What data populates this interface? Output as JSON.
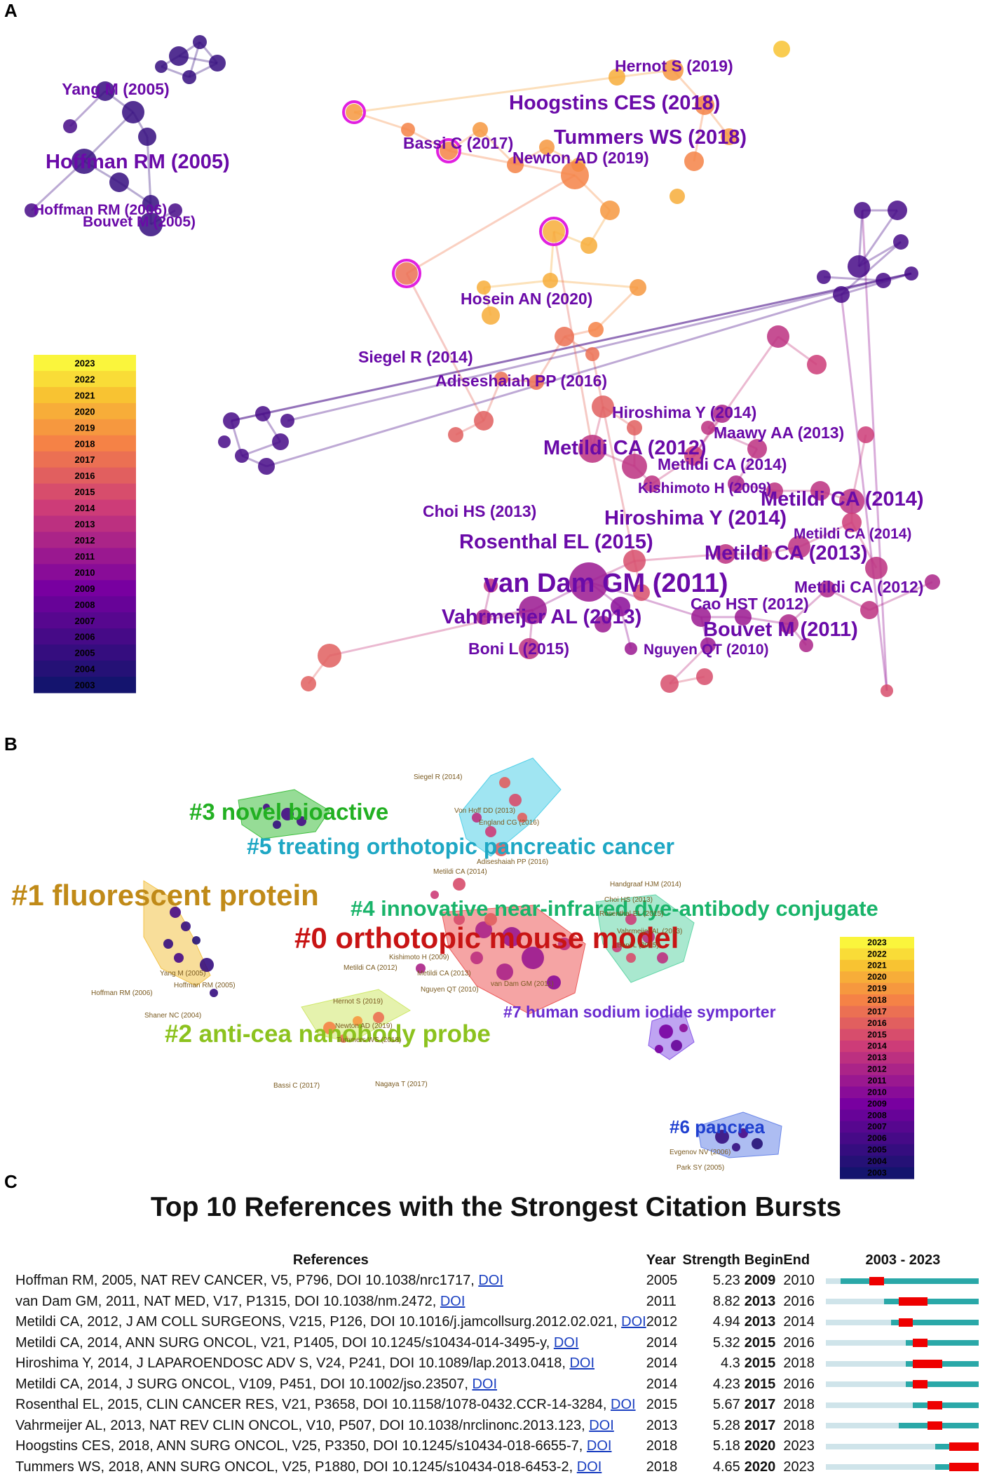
{
  "panel_a": {
    "letter": "A",
    "labels": [
      {
        "text": "Yang M (2005)",
        "size": "m"
      },
      {
        "text": "Hoffman RM (2005)",
        "size": "l"
      },
      {
        "text": "Hoffman RM (2006)",
        "size": "s"
      },
      {
        "text": "Bouvet M (2005)",
        "size": "s"
      },
      {
        "text": "Hernot S (2019)",
        "size": "m"
      },
      {
        "text": "Hoogstins CES (2018)",
        "size": "l"
      },
      {
        "text": "Tummers WS (2018)",
        "size": "l"
      },
      {
        "text": "Bassi C (2017)",
        "size": "m"
      },
      {
        "text": "Newton AD (2019)",
        "size": "m"
      },
      {
        "text": "Hosein AN (2020)",
        "size": "m"
      },
      {
        "text": "Siegel R (2014)",
        "size": "m"
      },
      {
        "text": "Adiseshaiah PP (2016)",
        "size": "m"
      },
      {
        "text": "Hiroshima Y (2014)",
        "size": "m"
      },
      {
        "text": "Maawy AA (2013)",
        "size": "m"
      },
      {
        "text": "Metildi CA (2012)",
        "size": "l"
      },
      {
        "text": "Metildi CA (2014)",
        "size": "m"
      },
      {
        "text": "Kishimoto H (2009)",
        "size": "s"
      },
      {
        "text": "Metildi CA (2014)",
        "size": "l"
      },
      {
        "text": "Choi HS (2013)",
        "size": "m"
      },
      {
        "text": "Hiroshima Y (2014)",
        "size": "l"
      },
      {
        "text": "Metildi CA (2014)",
        "size": "s"
      },
      {
        "text": "Rosenthal EL (2015)",
        "size": "l"
      },
      {
        "text": "Metildi CA (2013)",
        "size": "l"
      },
      {
        "text": "van Dam GM (2011)",
        "size": "xl"
      },
      {
        "text": "Metildi CA (2012)",
        "size": "m"
      },
      {
        "text": "Cao HST (2012)",
        "size": "m"
      },
      {
        "text": "Vahrmeijer AL (2013)",
        "size": "l"
      },
      {
        "text": "Bouvet M (2011)",
        "size": "l"
      },
      {
        "text": "Boni L (2015)",
        "size": "m"
      },
      {
        "text": "Nguyen QT (2010)",
        "size": "s"
      }
    ],
    "legend_years": [
      "2023",
      "2022",
      "2021",
      "2020",
      "2019",
      "2018",
      "2017",
      "2016",
      "2015",
      "2014",
      "2013",
      "2012",
      "2011",
      "2010",
      "2009",
      "2008",
      "2007",
      "2006",
      "2005",
      "2004",
      "2003"
    ]
  },
  "panel_b": {
    "letter": "B",
    "clusters": [
      {
        "text": "#3 novel bioactive",
        "color": "#22b022"
      },
      {
        "text": "#5 treating orthotopic pancreatic cancer",
        "color": "#1ea7c4"
      },
      {
        "text": "#1 fluorescent protein",
        "color": "#c08a18"
      },
      {
        "text": "#4 innovative near-infrared dye-antibody conjugate",
        "color": "#19b46a"
      },
      {
        "text": "#0 orthotopic mouse model",
        "color": "#c81414"
      },
      {
        "text": "#7 human sodium iodide symporter",
        "color": "#6a2cd0"
      },
      {
        "text": "#2 anti-cea nanobody probe",
        "color": "#8cc21e"
      },
      {
        "text": "#6 pancrea",
        "color": "#2040d0"
      }
    ],
    "small_labels": [
      "Siegel R (2014)",
      "Von Hoff DD (2013)",
      "England CG (2016)",
      "Adiseshaiah PP (2016)",
      "Metildi CA (2014)",
      "Handgraaf HJM (2014)",
      "Choi HS (2013)",
      "Rosenthal EL (2015)",
      "Vahrmeijer AL (2013)",
      "Boni L (2015)",
      "Metildi CA (2012)",
      "van Dam GM (2011)",
      "Metildi CA (2013)",
      "Nguyen QT (2010)",
      "Kishimoto H (2009)",
      "Yang M (2005)",
      "Hoffman RM (2005)",
      "Hoffman RM (2006)",
      "Shaner NC (2004)",
      "Hernot S (2019)",
      "Newton AD (2019)",
      "Tummers WS (2018)",
      "Bassi C (2017)",
      "Nagaya T (2017)",
      "Evgenov NV (2006)",
      "Park SY (2005)"
    ],
    "legend_years": [
      "2023",
      "2022",
      "2021",
      "2020",
      "2019",
      "2018",
      "2017",
      "2016",
      "2015",
      "2014",
      "2013",
      "2012",
      "2011",
      "2010",
      "2009",
      "2008",
      "2007",
      "2006",
      "2005",
      "2004",
      "2003"
    ]
  },
  "panel_c": {
    "letter": "C",
    "title": "Top 10 References with the Strongest Citation Bursts",
    "headers": {
      "references": "References",
      "year": "Year",
      "strength": "Strength",
      "begin": "Begin",
      "end": "End",
      "range": "2003 - 2023"
    },
    "range_start": 2003,
    "range_end": 2023,
    "rows": [
      {
        "ref": "Hoffman RM, 2005, NAT REV CANCER, V5, P796, DOI 10.1038/nrc1717,",
        "doi": "DOI",
        "year": 2005,
        "strength": "5.23",
        "begin": 2009,
        "end": 2010
      },
      {
        "ref": "van Dam GM, 2011, NAT MED, V17, P1315, DOI 10.1038/nm.2472,",
        "doi": "DOI",
        "year": 2011,
        "strength": "8.82",
        "begin": 2013,
        "end": 2016
      },
      {
        "ref": "Metildi CA, 2012, J AM COLL SURGEONS, V215, P126, DOI 10.1016/j.jamcollsurg.2012.02.021,",
        "doi": "DOI",
        "year": 2012,
        "strength": "4.94",
        "begin": 2013,
        "end": 2014
      },
      {
        "ref": "Metildi CA, 2014, ANN SURG ONCOL, V21, P1405, DOI 10.1245/s10434-014-3495-y,",
        "doi": "DOI",
        "year": 2014,
        "strength": "5.32",
        "begin": 2015,
        "end": 2016
      },
      {
        "ref": "Hiroshima Y, 2014, J LAPAROENDOSC ADV S, V24, P241, DOI 10.1089/lap.2013.0418,",
        "doi": "DOI",
        "year": 2014,
        "strength": "4.3",
        "begin": 2015,
        "end": 2018
      },
      {
        "ref": "Metildi CA, 2014, J SURG ONCOL, V109, P451, DOI 10.1002/jso.23507,",
        "doi": "DOI",
        "year": 2014,
        "strength": "4.23",
        "begin": 2015,
        "end": 2016
      },
      {
        "ref": "Rosenthal EL, 2015, CLIN CANCER RES, V21, P3658, DOI 10.1158/1078-0432.CCR-14-3284,",
        "doi": "DOI",
        "year": 2015,
        "strength": "5.67",
        "begin": 2017,
        "end": 2018
      },
      {
        "ref": "Vahrmeijer AL, 2013, NAT REV CLIN ONCOL, V10, P507, DOI 10.1038/nrclinonc.2013.123,",
        "doi": "DOI",
        "year": 2013,
        "strength": "5.28",
        "begin": 2017,
        "end": 2018
      },
      {
        "ref": "Hoogstins CES, 2018, ANN SURG ONCOL, V25, P3350, DOI 10.1245/s10434-018-6655-7,",
        "doi": "DOI",
        "year": 2018,
        "strength": "5.18",
        "begin": 2020,
        "end": 2023
      },
      {
        "ref": "Tummers WS, 2018, ANN SURG ONCOL, V25, P1880, DOI 10.1245/s10434-018-6453-2,",
        "doi": "DOI",
        "year": 2018,
        "strength": "4.65",
        "begin": 2020,
        "end": 2023
      }
    ]
  }
}
